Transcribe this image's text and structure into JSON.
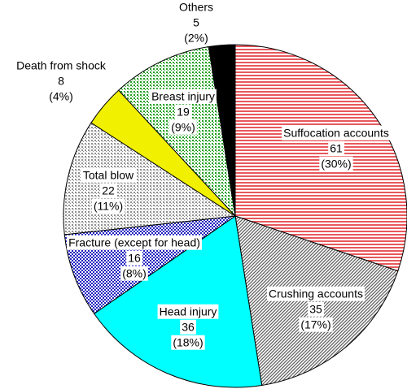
{
  "chart_data": {
    "type": "pie",
    "categories": [
      "Suffocation accounts",
      "Crushing accounts",
      "Head injury",
      "Fracture (except for head)",
      "Total blow",
      "Death from shock",
      "Breast injury",
      "Others"
    ],
    "values": [
      61,
      35,
      36,
      16,
      22,
      8,
      19,
      5
    ],
    "value_labels_percent": [
      "(30%)",
      "(17%)",
      "(18%)",
      "(8%)",
      "(11%)",
      "(4%)",
      "(9%)",
      "(2%)"
    ],
    "colors": [
      "#e8585c",
      "#606060",
      "#00ffff",
      "#2020c0",
      "#909090",
      "#f0f000",
      "#20a020",
      "#000000"
    ],
    "patterns": [
      "horizontal",
      "diagonal",
      "solid",
      "grid",
      "dots",
      "solid",
      "dots",
      "solid"
    ]
  }
}
